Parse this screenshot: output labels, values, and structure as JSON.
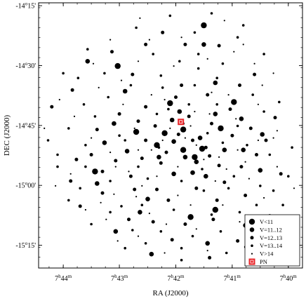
{
  "chart_data": {
    "type": "scatter",
    "xlabel": "RA (J2000)",
    "ylabel": "DEC (J2000)",
    "x_axis_reversed": true,
    "xlim": [
      7.7406,
      7.6625
    ],
    "ylim": [
      -15.345,
      -14.238
    ],
    "x_ticks": [
      {
        "value": 7.7333,
        "label_main": "7",
        "label_h": "h",
        "label_min": "44",
        "label_m": "m"
      },
      {
        "value": 7.7167,
        "label_main": "7",
        "label_h": "h",
        "label_min": "43",
        "label_m": "m"
      },
      {
        "value": 7.7,
        "label_main": "7",
        "label_h": "h",
        "label_min": "42",
        "label_m": "m"
      },
      {
        "value": 7.6833,
        "label_main": "7",
        "label_h": "h",
        "label_min": "41",
        "label_m": "m"
      },
      {
        "value": 7.6667,
        "label_main": "7",
        "label_h": "h",
        "label_min": "40",
        "label_m": "m"
      }
    ],
    "y_ticks": [
      {
        "value": -14.25,
        "label_main": "-14",
        "label_deg": "o",
        "label_arc": "15'"
      },
      {
        "value": -14.5,
        "label_main": "-14",
        "label_deg": "o",
        "label_arc": "30'"
      },
      {
        "value": -14.75,
        "label_main": "-14",
        "label_deg": "o",
        "label_arc": "45'"
      },
      {
        "value": -15.0,
        "label_main": "-15",
        "label_deg": "o",
        "label_arc": "00'"
      },
      {
        "value": -15.25,
        "label_main": "-15",
        "label_deg": "o",
        "label_arc": "15'"
      }
    ],
    "cluster_center": {
      "ra": 7.6965,
      "dec": -14.9
    },
    "grid": false,
    "legend_position": "bottom-right",
    "legend": [
      {
        "label": "V<11",
        "marker": "circle",
        "size_class": 0
      },
      {
        "label": "V=11..12",
        "marker": "circle",
        "size_class": 1
      },
      {
        "label": "V=12..13",
        "marker": "circle",
        "size_class": 2
      },
      {
        "label": "V=13..14",
        "marker": "circle",
        "size_class": 3
      },
      {
        "label": "V>14",
        "marker": "circle",
        "size_class": 4
      },
      {
        "label": "PN",
        "marker": "square",
        "color": "#e8262a"
      }
    ],
    "pn": {
      "ra": 7.6985,
      "dec": -14.735
    },
    "series": [
      {
        "magnitude_class": "V<11",
        "points": [
          [
            7.7172,
            -14.502
          ],
          [
            7.7117,
            -14.777
          ],
          [
            7.6917,
            -14.332
          ],
          [
            7.7056,
            -14.832
          ],
          [
            7.6978,
            -14.852
          ],
          [
            7.6922,
            -14.847
          ],
          [
            7.6867,
            -14.762
          ],
          [
            7.6956,
            -15.132
          ],
          [
            7.6883,
            -15.102
          ],
          [
            7.7017,
            -14.657
          ],
          [
            7.6944,
            -14.882
          ],
          [
            7.7239,
            -14.942
          ],
          [
            7.6978,
            -14.767
          ],
          [
            7.7033,
            -14.782
          ],
          [
            7.6828,
            -14.652
          ]
        ]
      },
      {
        "magnitude_class": "V=11..12",
        "points": [
          [
            7.7261,
            -14.482
          ],
          [
            7.715,
            -14.607
          ],
          [
            7.6917,
            -14.412
          ],
          [
            7.6883,
            -14.572
          ],
          [
            7.68,
            -14.852
          ],
          [
            7.675,
            -14.937
          ],
          [
            7.6856,
            -14.852
          ],
          [
            7.695,
            -14.947
          ],
          [
            7.705,
            -14.882
          ],
          [
            7.7106,
            -15.112
          ],
          [
            7.6794,
            -15.167
          ],
          [
            7.7178,
            -15.192
          ],
          [
            7.7072,
            -15.287
          ],
          [
            7.6906,
            -15.242
          ],
          [
            7.6806,
            -14.722
          ],
          [
            7.6989,
            -14.692
          ],
          [
            7.6928,
            -14.802
          ],
          [
            7.6939,
            -14.902
          ],
          [
            7.7006,
            -14.952
          ],
          [
            7.7083,
            -15.057
          ],
          [
            7.6911,
            -14.962
          ],
          [
            7.7233,
            -14.992
          ],
          [
            7.6744,
            -14.787
          ],
          [
            7.6883,
            -14.702
          ],
          [
            7.7006,
            -14.817
          ],
          [
            7.6972,
            -14.882
          ],
          [
            7.7011,
            -14.727
          ],
          [
            7.7144,
            -14.857
          ],
          [
            7.7183,
            -14.742
          ],
          [
            7.7211,
            -14.822
          ]
        ]
      },
      {
        "magnitude_class": "V=12..13",
        "points": [
          [
            7.7306,
            -14.602
          ],
          [
            7.7367,
            -14.672
          ],
          [
            7.7189,
            -14.442
          ],
          [
            7.7089,
            -14.412
          ],
          [
            7.7039,
            -14.362
          ],
          [
            7.6972,
            -14.412
          ],
          [
            7.6872,
            -14.417
          ],
          [
            7.6767,
            -14.537
          ],
          [
            7.6733,
            -14.812
          ],
          [
            7.6806,
            -14.922
          ],
          [
            7.6689,
            -14.952
          ],
          [
            7.6794,
            -15.042
          ],
          [
            7.6817,
            -15.232
          ],
          [
            7.69,
            -15.302
          ],
          [
            7.7011,
            -15.227
          ],
          [
            7.7139,
            -15.142
          ],
          [
            7.7217,
            -15.032
          ],
          [
            7.7311,
            -14.982
          ],
          [
            7.7294,
            -14.892
          ],
          [
            7.7233,
            -14.767
          ],
          [
            7.7167,
            -14.702
          ],
          [
            7.7089,
            -14.672
          ],
          [
            7.7,
            -14.632
          ],
          [
            7.6906,
            -14.622
          ],
          [
            7.6839,
            -14.682
          ],
          [
            7.6778,
            -14.762
          ],
          [
            7.6872,
            -14.917
          ],
          [
            7.6939,
            -15.012
          ],
          [
            7.7056,
            -15.017
          ],
          [
            7.7133,
            -14.962
          ],
          [
            7.7178,
            -14.897
          ],
          [
            7.7089,
            -14.812
          ],
          [
            7.6992,
            -14.787
          ],
          [
            7.6911,
            -14.842
          ],
          [
            7.6856,
            -14.987
          ],
          [
            7.7022,
            -15.062
          ],
          [
            7.7122,
            -15.017
          ],
          [
            7.6972,
            -15.162
          ],
          [
            7.7067,
            -15.152
          ],
          [
            7.6878,
            -15.062
          ],
          [
            7.6961,
            -14.712
          ],
          [
            7.7028,
            -14.862
          ],
          [
            7.695,
            -14.812
          ],
          [
            7.6894,
            -14.742
          ],
          [
            7.7061,
            -14.752
          ],
          [
            7.7111,
            -14.732
          ],
          [
            7.6833,
            -14.792
          ],
          [
            7.6761,
            -14.872
          ],
          [
            7.69,
            -14.877
          ],
          [
            7.7044,
            -14.907
          ],
          [
            7.71,
            -14.887
          ],
          [
            7.7217,
            -14.942
          ],
          [
            7.6983,
            -14.582
          ],
          [
            7.6811,
            -14.582
          ],
          [
            7.6889,
            -15.142
          ],
          [
            7.725,
            -14.872
          ],
          [
            7.7283,
            -15.087
          ],
          [
            7.6706,
            -14.717
          ],
          [
            7.6722,
            -15.127
          ],
          [
            7.7128,
            -14.537
          ]
        ]
      },
      {
        "magnitude_class": "V=13..14",
        "points": [
          [
            7.7017,
            -14.292
          ],
          [
            7.6894,
            -14.282
          ],
          [
            7.68,
            -14.332
          ],
          [
            7.7117,
            -14.342
          ],
          [
            7.7261,
            -14.432
          ],
          [
            7.7333,
            -14.532
          ],
          [
            7.7378,
            -14.812
          ],
          [
            7.735,
            -14.922
          ],
          [
            7.7317,
            -15.062
          ],
          [
            7.725,
            -15.162
          ],
          [
            7.715,
            -15.262
          ],
          [
            7.6983,
            -15.312
          ],
          [
            7.685,
            -15.282
          ],
          [
            7.6744,
            -15.192
          ],
          [
            7.6683,
            -15.082
          ],
          [
            7.6667,
            -14.962
          ],
          [
            7.6656,
            -14.842
          ],
          [
            7.6694,
            -14.652
          ],
          [
            7.6739,
            -14.452
          ],
          [
            7.6817,
            -14.382
          ],
          [
            7.6944,
            -14.362
          ],
          [
            7.7067,
            -14.452
          ],
          [
            7.7211,
            -14.532
          ],
          [
            7.7272,
            -14.662
          ],
          [
            7.7317,
            -14.762
          ],
          [
            7.7267,
            -14.832
          ],
          [
            7.72,
            -14.632
          ],
          [
            7.7133,
            -14.582
          ],
          [
            7.7044,
            -14.542
          ],
          [
            7.6933,
            -14.512
          ],
          [
            7.6861,
            -14.492
          ],
          [
            7.6772,
            -14.622
          ],
          [
            7.6722,
            -14.872
          ],
          [
            7.675,
            -15.002
          ],
          [
            7.6811,
            -15.112
          ],
          [
            7.6867,
            -15.192
          ],
          [
            7.695,
            -15.212
          ],
          [
            7.7044,
            -15.192
          ],
          [
            7.7161,
            -15.087
          ],
          [
            7.7267,
            -14.922
          ],
          [
            7.7167,
            -14.792
          ],
          [
            7.7056,
            -14.702
          ],
          [
            7.6961,
            -14.662
          ],
          [
            7.6878,
            -14.662
          ],
          [
            7.6817,
            -14.752
          ],
          [
            7.6789,
            -14.832
          ],
          [
            7.6828,
            -14.962
          ],
          [
            7.6917,
            -15.022
          ],
          [
            7.7006,
            -15.102
          ],
          [
            7.71,
            -15.082
          ],
          [
            7.7194,
            -14.982
          ],
          [
            7.7111,
            -14.922
          ],
          [
            7.705,
            -14.842
          ],
          [
            7.6978,
            -14.742
          ],
          [
            7.6906,
            -14.782
          ],
          [
            7.6861,
            -14.822
          ],
          [
            7.6922,
            -14.932
          ],
          [
            7.6983,
            -14.982
          ],
          [
            7.7083,
            -14.972
          ],
          [
            7.715,
            -14.812
          ],
          [
            7.7239,
            -14.712
          ],
          [
            7.6989,
            -14.482
          ],
          [
            7.6878,
            -14.552
          ],
          [
            7.6983,
            -15.262
          ],
          [
            7.7089,
            -15.242
          ],
          [
            7.6761,
            -15.082
          ],
          [
            7.6711,
            -15.022
          ],
          [
            7.735,
            -14.872
          ],
          [
            7.7289,
            -14.552
          ],
          [
            7.6933,
            -14.452
          ],
          [
            7.7039,
            -14.592
          ],
          [
            7.6739,
            -14.692
          ],
          [
            7.6894,
            -15.122
          ],
          [
            7.7194,
            -15.112
          ],
          [
            7.7283,
            -15.012
          ],
          [
            7.6944,
            -14.582
          ],
          [
            7.7022,
            -14.682
          ],
          [
            7.6844,
            -15.012
          ],
          [
            7.7128,
            -15.187
          ],
          [
            7.6794,
            -15.257
          ]
        ]
      },
      {
        "magnitude_class": "V>14",
        "points": [
          [
            7.7106,
            -14.302
          ],
          [
            7.6856,
            -14.312
          ],
          [
            7.7194,
            -14.392
          ],
          [
            7.6711,
            -14.532
          ],
          [
            7.67,
            -14.772
          ],
          [
            7.665,
            -15.012
          ],
          [
            7.6728,
            -15.172
          ],
          [
            7.7356,
            -15.002
          ],
          [
            7.7389,
            -14.762
          ],
          [
            7.7344,
            -14.642
          ],
          [
            7.7228,
            -14.592
          ],
          [
            7.7111,
            -14.482
          ],
          [
            7.7006,
            -14.502
          ],
          [
            7.6906,
            -14.472
          ],
          [
            7.6828,
            -14.442
          ],
          [
            7.6767,
            -14.492
          ],
          [
            7.6794,
            -14.902
          ],
          [
            7.6883,
            -14.982
          ],
          [
            7.6994,
            -15.042
          ],
          [
            7.71,
            -15.002
          ],
          [
            7.7194,
            -14.862
          ],
          [
            7.7122,
            -14.762
          ],
          [
            7.7017,
            -14.762
          ],
          [
            7.6939,
            -14.832
          ],
          [
            7.6872,
            -14.882
          ],
          [
            7.6956,
            -15.082
          ],
          [
            7.7078,
            -15.117
          ],
          [
            7.7183,
            -15.037
          ],
          [
            7.725,
            -14.802
          ],
          [
            7.7156,
            -14.662
          ],
          [
            7.7033,
            -14.642
          ],
          [
            7.6944,
            -14.692
          ],
          [
            7.6822,
            -14.722
          ],
          [
            7.6756,
            -14.812
          ],
          [
            7.6783,
            -14.972
          ],
          [
            7.6861,
            -15.082
          ],
          [
            7.6939,
            -15.182
          ],
          [
            7.7028,
            -15.162
          ],
          [
            7.7111,
            -15.212
          ],
          [
            7.7206,
            -15.142
          ],
          [
            7.7311,
            -14.952
          ],
          [
            7.73,
            -14.712
          ],
          [
            7.7244,
            -14.492
          ],
          [
            7.7078,
            -14.392
          ],
          [
            7.6983,
            -14.382
          ],
          [
            7.68,
            -14.412
          ],
          [
            7.6744,
            -14.582
          ],
          [
            7.6711,
            -14.802
          ],
          [
            7.67,
            -14.922
          ],
          [
            7.6739,
            -15.052
          ],
          [
            7.6811,
            -15.152
          ],
          [
            7.6906,
            -15.272
          ],
          [
            7.7033,
            -15.282
          ],
          [
            7.7172,
            -15.232
          ],
          [
            7.7267,
            -15.102
          ],
          [
            7.7056,
            -14.962
          ],
          [
            7.6917,
            -14.892
          ],
          [
            7.6972,
            -14.802
          ],
          [
            7.7039,
            -14.812
          ],
          [
            7.7111,
            -14.852
          ],
          [
            7.6956,
            -14.752
          ],
          [
            7.6894,
            -14.612
          ],
          [
            7.7072,
            -14.622
          ],
          [
            7.7161,
            -14.562
          ],
          [
            7.6817,
            -14.852
          ],
          [
            7.685,
            -14.932
          ],
          [
            7.7139,
            -14.942
          ],
          [
            7.7178,
            -14.922
          ],
          [
            7.69,
            -14.702
          ],
          [
            7.6844,
            -14.622
          ],
          [
            7.7072,
            -14.852
          ],
          [
            7.6994,
            -14.922
          ],
          [
            7.7117,
            -15.047
          ],
          [
            7.6756,
            -14.662
          ],
          [
            7.7222,
            -15.072
          ]
        ]
      }
    ]
  }
}
